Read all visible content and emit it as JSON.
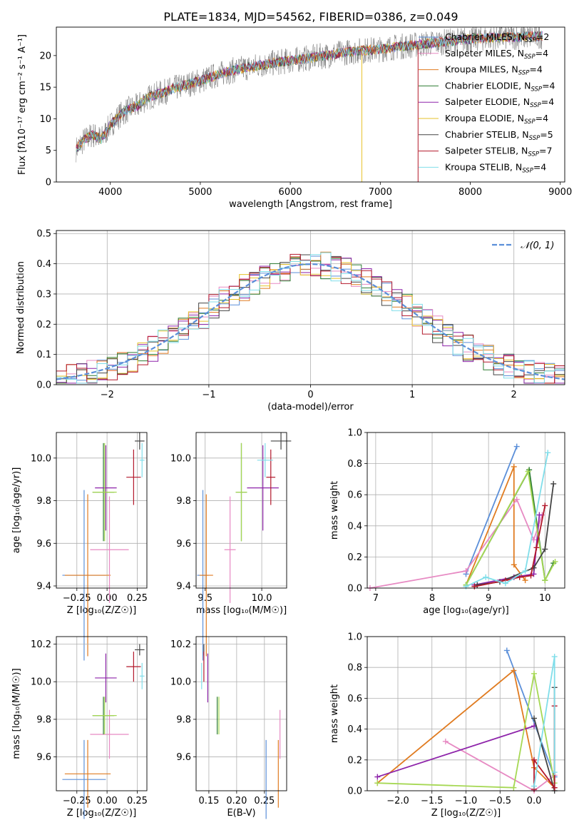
{
  "figure": {
    "title": "PLATE=1834, MJD=54562, FIBERID=0386, z=0.049",
    "colors": {
      "blue": "#5b8fd9",
      "orange": "#e07b20",
      "pink": "#e78ac3",
      "gray": "#444444",
      "red": "#b2182b",
      "purple": "#8e24aa",
      "lime": "#a6d854",
      "olive": "#2e7d32",
      "cyan": "#80deea",
      "gold": "#e6c229"
    }
  },
  "chart_data": [
    {
      "id": "spectrum",
      "type": "line",
      "xlabel": "wavelength [Angstrom, rest frame]",
      "ylabel": "Flux [fλ10⁻¹⁷ erg cm⁻² s⁻¹ A⁻¹]",
      "xlim": [
        3400,
        9050
      ],
      "ylim": [
        0,
        24.5
      ],
      "xticks": [
        4000,
        5000,
        6000,
        7000,
        8000,
        9000
      ],
      "yticks": [
        0,
        5,
        10,
        15,
        20
      ],
      "grid": false,
      "legend_position": "top-right",
      "legend": [
        {
          "label": "Chabrier MILES, N",
          "sub": "SSP",
          "tail": "=2",
          "color": "#5b8fd9"
        },
        {
          "label": "Salpeter MILES, N",
          "sub": "SSP",
          "tail": "=4",
          "color": "#e78ac3"
        },
        {
          "label": "Kroupa MILES, N",
          "sub": "SSP",
          "tail": "=4",
          "color": "#e07b20"
        },
        {
          "label": "Chabrier ELODIE, N",
          "sub": "SSP",
          "tail": "=4",
          "color": "#2e7d32"
        },
        {
          "label": "Salpeter ELODIE, N",
          "sub": "SSP",
          "tail": "=4",
          "color": "#8e24aa"
        },
        {
          "label": "Kroupa ELODIE, N",
          "sub": "SSP",
          "tail": "=4",
          "color": "#e6c229"
        },
        {
          "label": "Chabrier STELIB, N",
          "sub": "SSP",
          "tail": "=5",
          "color": "#444444"
        },
        {
          "label": "Salpeter STELIB, N",
          "sub": "SSP",
          "tail": "=7",
          "color": "#b2182b"
        },
        {
          "label": "Kroupa STELIB, N",
          "sub": "SSP",
          "tail": "=4",
          "color": "#80deea"
        }
      ],
      "x": [
        3620,
        3700,
        3800,
        3900,
        4000,
        4100,
        4200,
        4300,
        4400,
        4500,
        4600,
        4700,
        4800,
        4900,
        5000,
        5200,
        5400,
        5600,
        5800,
        6000,
        6200,
        6400,
        6600,
        6800,
        7000,
        7200,
        7400,
        7600,
        7800,
        8000,
        8200,
        8400,
        8600,
        8800
      ],
      "series": [
        {
          "name": "model",
          "values": [
            5.2,
            6.5,
            7.5,
            6.8,
            9.0,
            10.5,
            11.5,
            12.0,
            13.2,
            13.8,
            14.2,
            14.8,
            15.2,
            15.6,
            16.0,
            17.0,
            17.8,
            18.3,
            18.8,
            19.2,
            19.6,
            20.0,
            20.5,
            20.8,
            21.0,
            21.4,
            21.7,
            22.0,
            22.3,
            22.6,
            22.8,
            22.9,
            23.0,
            23.1
          ]
        }
      ]
    },
    {
      "id": "residuals",
      "type": "bar",
      "xlabel": "(data-model)/error",
      "ylabel": "Normed distribution",
      "xlim": [
        -2.5,
        2.5
      ],
      "ylim": [
        0,
        0.51
      ],
      "xticks": [
        -2,
        -1,
        0,
        1,
        2
      ],
      "yticks": [
        0.0,
        0.1,
        0.2,
        0.3,
        0.4,
        0.5
      ],
      "grid": true,
      "legend_position": "top-right",
      "legend": [
        {
          "label": "𝒩(0, 1)",
          "color": "#5b8fd9"
        }
      ],
      "bin_edges_from": -2.5,
      "bin_width": 0.1
    },
    {
      "id": "age_vs_Z",
      "type": "scatter",
      "xlabel": "Z [log₁₀(Z/Z☉)]",
      "ylabel": "age  [log₁₀(age/yr)]",
      "xlim": [
        -0.42,
        0.33
      ],
      "ylim": [
        9.39,
        10.12
      ],
      "xticks": [
        -0.25,
        0.0,
        0.25
      ],
      "yticks": [
        9.4,
        9.6,
        9.8,
        10.0
      ],
      "grid": true,
      "points": [
        {
          "x": -0.19,
          "y": 9.45,
          "xerr": 0.18,
          "yerr": 0.4,
          "color": "#5b8fd9"
        },
        {
          "x": -0.16,
          "y": 9.45,
          "xerr": 0.19,
          "yerr": 0.38,
          "color": "#e07b20"
        },
        {
          "x": 0.02,
          "y": 9.57,
          "xerr": 0.16,
          "yerr": 0.25,
          "color": "#e78ac3"
        },
        {
          "x": -0.03,
          "y": 9.84,
          "xerr": 0.09,
          "yerr": 0.23,
          "color": "#2e7d32"
        },
        {
          "x": -0.01,
          "y": 9.86,
          "xerr": 0.09,
          "yerr": 0.2,
          "color": "#8e24aa"
        },
        {
          "x": -0.02,
          "y": 9.84,
          "xerr": 0.1,
          "yerr": 0.23,
          "color": "#a6d854"
        },
        {
          "x": 0.27,
          "y": 10.08,
          "xerr": 0.04,
          "yerr": 0.04,
          "color": "#444444"
        },
        {
          "x": 0.22,
          "y": 9.91,
          "xerr": 0.06,
          "yerr": 0.13,
          "color": "#b2182b"
        },
        {
          "x": 0.29,
          "y": 9.99,
          "xerr": 0.02,
          "yerr": 0.08,
          "color": "#80deea"
        }
      ]
    },
    {
      "id": "age_vs_mass",
      "type": "scatter",
      "xlabel": "mass [log₁₀(M/M☉)]",
      "ylabel": "",
      "xlim": [
        9.42,
        10.22
      ],
      "ylim": [
        9.39,
        10.12
      ],
      "xticks": [
        9.5,
        10.0
      ],
      "yticks": [
        9.4,
        9.6,
        9.8,
        10.0
      ],
      "grid": true,
      "points": [
        {
          "x": 9.48,
          "y": 9.45,
          "xerr": 0.05,
          "yerr": 0.4,
          "color": "#5b8fd9"
        },
        {
          "x": 9.51,
          "y": 9.45,
          "xerr": 0.06,
          "yerr": 0.38,
          "color": "#e07b20"
        },
        {
          "x": 9.72,
          "y": 9.57,
          "xerr": 0.05,
          "yerr": 0.25,
          "color": "#e78ac3"
        },
        {
          "x": 9.82,
          "y": 9.84,
          "xerr": 0.05,
          "yerr": 0.23,
          "color": "#2e7d32"
        },
        {
          "x": 10.01,
          "y": 9.86,
          "xerr": 0.14,
          "yerr": 0.2,
          "color": "#8e24aa"
        },
        {
          "x": 9.82,
          "y": 9.84,
          "xerr": 0.05,
          "yerr": 0.23,
          "color": "#a6d854"
        },
        {
          "x": 10.17,
          "y": 10.08,
          "xerr": 0.09,
          "yerr": 0.04,
          "color": "#444444"
        },
        {
          "x": 10.08,
          "y": 9.91,
          "xerr": 0.04,
          "yerr": 0.13,
          "color": "#b2182b"
        },
        {
          "x": 10.03,
          "y": 9.99,
          "xerr": 0.07,
          "yerr": 0.08,
          "color": "#80deea"
        }
      ]
    },
    {
      "id": "massweight_vs_age",
      "type": "line",
      "xlabel": "age  [log₁₀(age/yr)]",
      "ylabel": "mass weight",
      "xlim": [
        6.85,
        10.35
      ],
      "ylim": [
        0,
        1.0
      ],
      "xticks": [
        7,
        8,
        9,
        10
      ],
      "yticks": [
        0.0,
        0.2,
        0.4,
        0.6,
        0.8,
        1.0
      ],
      "grid": true,
      "series": [
        {
          "color": "#5b8fd9",
          "x": [
            8.6,
            9.5
          ],
          "y": [
            0.09,
            0.91
          ]
        },
        {
          "color": "#e07b20",
          "x": [
            8.6,
            9.45,
            9.45,
            9.65
          ],
          "y": [
            0.02,
            0.78,
            0.15,
            0.05
          ]
        },
        {
          "color": "#e78ac3",
          "x": [
            6.9,
            8.6,
            9.5,
            9.8,
            9.95
          ],
          "y": [
            0.0,
            0.11,
            0.57,
            0.31,
            0.47
          ]
        },
        {
          "color": "#2e7d32",
          "x": [
            8.6,
            9.72,
            10.0,
            10.15
          ],
          "y": [
            0.02,
            0.76,
            0.05,
            0.16
          ]
        },
        {
          "color": "#8e24aa",
          "x": [
            8.75,
            9.45,
            9.8,
            9.9
          ],
          "y": [
            0.02,
            0.07,
            0.09,
            0.47
          ]
        },
        {
          "color": "#a6d854",
          "x": [
            8.6,
            9.7,
            10.0,
            10.18
          ],
          "y": [
            0.02,
            0.75,
            0.05,
            0.17
          ]
        },
        {
          "color": "#444444",
          "x": [
            8.8,
            9.2,
            9.8,
            10.0,
            10.15
          ],
          "y": [
            0.02,
            0.04,
            0.13,
            0.25,
            0.67
          ]
        },
        {
          "color": "#b2182b",
          "x": [
            8.75,
            9.3,
            9.55,
            9.75,
            9.85,
            10.0
          ],
          "y": [
            0.01,
            0.05,
            0.07,
            0.08,
            0.26,
            0.53
          ]
        },
        {
          "color": "#80deea",
          "x": [
            8.6,
            8.95,
            9.3,
            9.65,
            10.05
          ],
          "y": [
            0.01,
            0.07,
            0.03,
            0.11,
            0.87
          ]
        }
      ]
    },
    {
      "id": "mass_vs_Z",
      "type": "scatter",
      "xlabel": "Z [log₁₀(Z/Z☉)]",
      "ylabel": "mass [log₁₀(M/M☉)]",
      "xlim": [
        -0.42,
        0.33
      ],
      "ylim": [
        9.42,
        10.24
      ],
      "xticks": [
        -0.25,
        0.0,
        0.25
      ],
      "yticks": [
        9.6,
        9.8,
        10.0,
        10.2
      ],
      "grid": true,
      "points": [
        {
          "x": -0.19,
          "y": 9.48,
          "xerr": 0.18,
          "yerr": 0.21,
          "color": "#5b8fd9"
        },
        {
          "x": -0.16,
          "y": 9.51,
          "xerr": 0.19,
          "yerr": 0.18,
          "color": "#e07b20"
        },
        {
          "x": 0.02,
          "y": 9.72,
          "xerr": 0.16,
          "yerr": 0.13,
          "color": "#e78ac3"
        },
        {
          "x": -0.03,
          "y": 9.82,
          "xerr": 0.09,
          "yerr": 0.1,
          "color": "#2e7d32"
        },
        {
          "x": -0.01,
          "y": 10.02,
          "xerr": 0.09,
          "yerr": 0.13,
          "color": "#8e24aa"
        },
        {
          "x": -0.02,
          "y": 9.82,
          "xerr": 0.1,
          "yerr": 0.1,
          "color": "#a6d854"
        },
        {
          "x": 0.27,
          "y": 10.17,
          "xerr": 0.04,
          "yerr": 0.03,
          "color": "#444444"
        },
        {
          "x": 0.22,
          "y": 10.08,
          "xerr": 0.06,
          "yerr": 0.08,
          "color": "#b2182b"
        },
        {
          "x": 0.29,
          "y": 10.03,
          "xerr": 0.02,
          "yerr": 0.07,
          "color": "#80deea"
        }
      ]
    },
    {
      "id": "mass_vs_EBV",
      "type": "scatter",
      "xlabel": "E(B-V)",
      "ylabel": "",
      "xlim": [
        0.127,
        0.29
      ],
      "ylim": [
        9.42,
        10.24
      ],
      "xticks": [
        0.15,
        0.2,
        0.25
      ],
      "yticks": [
        9.6,
        9.8,
        10.0,
        10.2
      ],
      "grid": true,
      "points": [
        {
          "x": 0.253,
          "y": 9.48,
          "yerr": 0.21,
          "color": "#5b8fd9"
        },
        {
          "x": 0.275,
          "y": 9.51,
          "yerr": 0.18,
          "color": "#e07b20"
        },
        {
          "x": 0.278,
          "y": 9.72,
          "yerr": 0.13,
          "color": "#e78ac3"
        },
        {
          "x": 0.165,
          "y": 9.82,
          "yerr": 0.1,
          "color": "#2e7d32"
        },
        {
          "x": 0.148,
          "y": 10.02,
          "yerr": 0.13,
          "color": "#8e24aa"
        },
        {
          "x": 0.168,
          "y": 9.82,
          "yerr": 0.1,
          "color": "#a6d854"
        },
        {
          "x": 0.141,
          "y": 10.17,
          "yerr": 0.03,
          "color": "#444444"
        },
        {
          "x": 0.141,
          "y": 10.08,
          "yerr": 0.08,
          "color": "#b2182b"
        },
        {
          "x": 0.137,
          "y": 10.03,
          "yerr": 0.07,
          "color": "#80deea"
        }
      ]
    },
    {
      "id": "massweight_vs_Z",
      "type": "line",
      "xlabel": "Z [log₁₀(Z/Z☉)]",
      "ylabel": "mass weight",
      "xlim": [
        -2.45,
        0.45
      ],
      "ylim": [
        0,
        1.0
      ],
      "xticks": [
        -2.0,
        -1.5,
        -1.0,
        -0.5,
        0.0
      ],
      "yticks": [
        0.0,
        0.2,
        0.4,
        0.6,
        0.8,
        1.0
      ],
      "grid": true,
      "series": [
        {
          "color": "#5b8fd9",
          "x": [
            -0.4,
            0.3
          ],
          "y": [
            0.91,
            0.09
          ]
        },
        {
          "color": "#e07b20",
          "x": [
            -2.3,
            -0.3,
            0.0,
            0.3
          ],
          "y": [
            0.05,
            0.78,
            0.15,
            0.02
          ]
        },
        {
          "color": "#e78ac3",
          "x": [
            -1.3,
            0.0,
            0.3
          ],
          "y": [
            0.32,
            0.0,
            0.1
          ]
        },
        {
          "color": "#8e24aa",
          "x": [
            -2.3,
            0.0
          ],
          "y": [
            0.09,
            0.42
          ]
        },
        {
          "color": "#a6d854",
          "x": [
            -2.3,
            -0.3,
            0.0,
            0.3
          ],
          "y": [
            0.05,
            0.02,
            0.76,
            0.05
          ]
        },
        {
          "color": "#444444",
          "x": [
            0.0,
            0.3,
            0.3
          ],
          "y": [
            0.47,
            0.0,
            0.67
          ]
        },
        {
          "color": "#b2182b",
          "x": [
            0.0,
            0.0,
            0.3,
            0.3
          ],
          "y": [
            0.01,
            0.2,
            0.02,
            0.55
          ]
        },
        {
          "color": "#80deea",
          "x": [
            0.0,
            0.3,
            0.3
          ],
          "y": [
            0.03,
            0.87,
            0.12
          ]
        }
      ]
    }
  ]
}
